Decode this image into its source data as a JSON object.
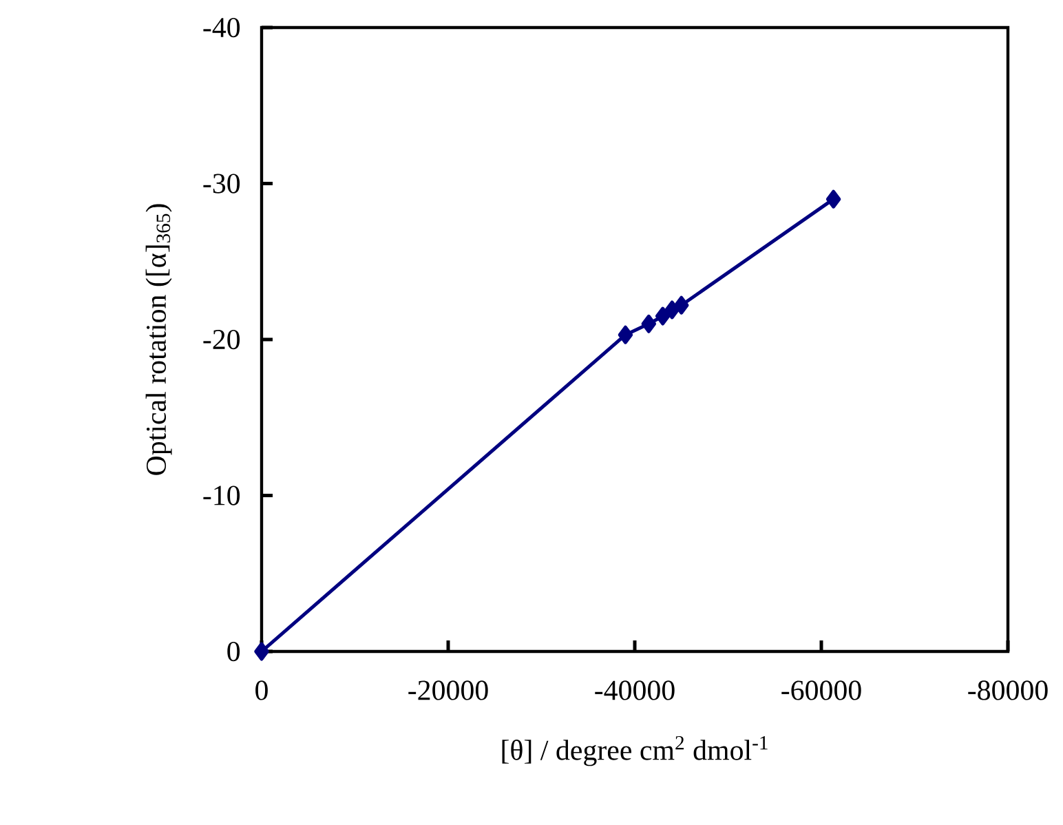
{
  "chart_data": {
    "type": "line",
    "xlabel": "[θ] / degree cm$^{2}$ dmol$^{-1}$",
    "ylabel": "Optical rotation ([α]$_{365}$)",
    "x": [
      0,
      -39000,
      -41500,
      -43000,
      -44000,
      -45000,
      -61300
    ],
    "series": [
      {
        "color": "#000080",
        "values": [
          0,
          -20.3,
          -21.0,
          -21.5,
          -21.9,
          -22.2,
          -29.0
        ]
      }
    ],
    "xlim": [
      0,
      -80000
    ],
    "ylim": [
      0,
      -40
    ],
    "xticks": [
      0,
      -20000,
      -40000,
      -60000,
      -80000
    ],
    "yticks": [
      0,
      -10,
      -20,
      -30,
      -40
    ],
    "marker": "diamond",
    "line_style": "solid",
    "grid": false
  }
}
